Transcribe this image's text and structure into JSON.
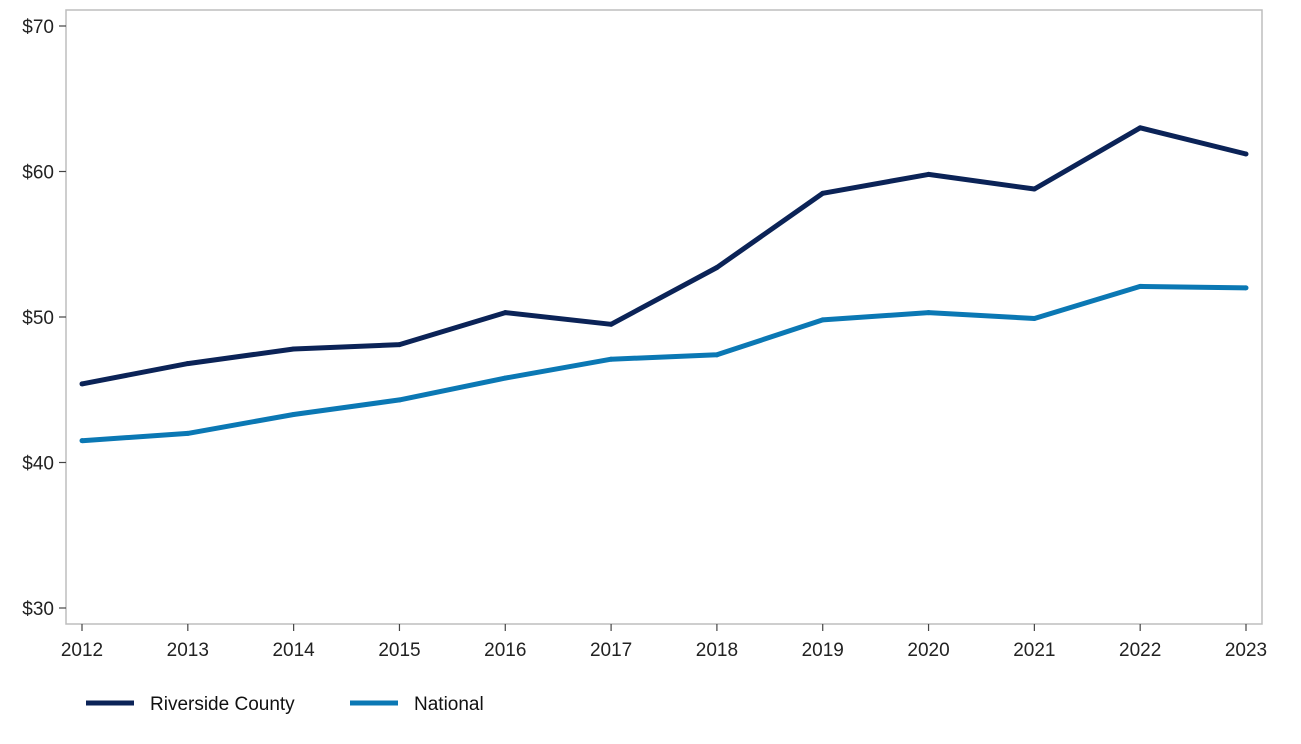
{
  "chart_data": {
    "type": "line",
    "title": "",
    "xlabel": "",
    "ylabel": "",
    "x": [
      "2012",
      "2013",
      "2014",
      "2015",
      "2016",
      "2017",
      "2018",
      "2019",
      "2020",
      "2021",
      "2022",
      "2023"
    ],
    "ylim": [
      30,
      70
    ],
    "yticks": [
      30,
      40,
      50,
      60,
      70
    ],
    "ytick_labels": [
      "$30",
      "$40",
      "$50",
      "$60",
      "$70"
    ],
    "grid": false,
    "legend_position": "bottom-left",
    "series": [
      {
        "name": "Riverside County",
        "color": "#0b2357",
        "values": [
          45.4,
          46.8,
          47.8,
          48.1,
          50.3,
          49.5,
          53.4,
          58.5,
          59.8,
          58.8,
          63.0,
          61.2
        ]
      },
      {
        "name": "National",
        "color": "#0b78b4",
        "values": [
          41.5,
          42.0,
          43.3,
          44.3,
          45.8,
          47.1,
          47.4,
          49.8,
          50.3,
          49.9,
          52.1,
          52.0
        ]
      }
    ]
  }
}
